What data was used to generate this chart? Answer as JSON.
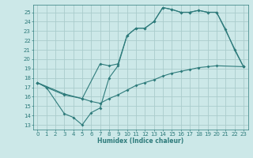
{
  "xlabel": "Humidex (Indice chaleur)",
  "bg_color": "#cce8e8",
  "grid_color": "#aacccc",
  "line_color": "#2e7b7b",
  "xlim": [
    -0.5,
    23.5
  ],
  "ylim": [
    12.5,
    25.8
  ],
  "xticks": [
    0,
    1,
    2,
    3,
    4,
    5,
    6,
    7,
    8,
    9,
    10,
    11,
    12,
    13,
    14,
    15,
    16,
    17,
    18,
    19,
    20,
    21,
    22,
    23
  ],
  "yticks": [
    13,
    14,
    15,
    16,
    17,
    18,
    19,
    20,
    21,
    22,
    23,
    24,
    25
  ],
  "line1_x": [
    0,
    1,
    3,
    4,
    5,
    6,
    7,
    8,
    9,
    10,
    11,
    12,
    13,
    14,
    15,
    16,
    17,
    18,
    19,
    20,
    21,
    22,
    23
  ],
  "line1_y": [
    17.5,
    17.0,
    14.2,
    13.8,
    13.0,
    14.3,
    14.8,
    18.0,
    19.3,
    22.5,
    23.3,
    23.3,
    24.0,
    25.5,
    25.3,
    25.0,
    25.0,
    25.2,
    25.0,
    25.0,
    23.2,
    21.0,
    19.2
  ],
  "line2_x": [
    0,
    3,
    5,
    7,
    8,
    9,
    10,
    11,
    12,
    13,
    14,
    15,
    16,
    17,
    18,
    19,
    20,
    23
  ],
  "line2_y": [
    17.5,
    16.3,
    15.8,
    19.5,
    19.3,
    19.5,
    22.5,
    23.3,
    23.3,
    24.0,
    25.5,
    25.3,
    25.0,
    25.0,
    25.2,
    25.0,
    25.0,
    19.2
  ],
  "line3_x": [
    0,
    1,
    3,
    5,
    6,
    7,
    8,
    9,
    10,
    11,
    12,
    13,
    14,
    15,
    16,
    17,
    18,
    19,
    20,
    23
  ],
  "line3_y": [
    17.5,
    17.0,
    16.2,
    15.8,
    15.5,
    15.3,
    15.8,
    16.2,
    16.7,
    17.2,
    17.5,
    17.8,
    18.2,
    18.5,
    18.7,
    18.9,
    19.1,
    19.2,
    19.3,
    19.2
  ]
}
